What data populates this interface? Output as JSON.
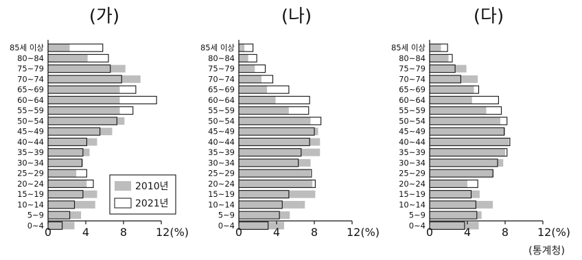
{
  "source": "(통계청)",
  "legend": {
    "entries": [
      {
        "label": "2010년",
        "color": "#bdbdbd"
      },
      {
        "label": "2021년",
        "color": "#ffffff"
      }
    ]
  },
  "chart_data": [
    {
      "type": "bar",
      "orientation": "horizontal",
      "title": "(가)",
      "xlim": [
        0,
        12
      ],
      "xticks": [
        "0",
        "4",
        "8",
        "12(%)"
      ],
      "categories": [
        "85세 이상",
        "80~84",
        "75~79",
        "70~74",
        "65~69",
        "60~64",
        "55~59",
        "50~54",
        "45~49",
        "40~44",
        "35~39",
        "30~34",
        "25~29",
        "20~24",
        "15~19",
        "10~14",
        "5~9",
        "0~4"
      ],
      "series": [
        {
          "name": "2010년",
          "values": [
            2.3,
            4.2,
            8.2,
            9.8,
            7.6,
            7.6,
            7.6,
            8.1,
            6.8,
            5.2,
            4.4,
            3.7,
            3.0,
            4.1,
            5.2,
            5.0,
            3.5,
            2.8
          ]
        },
        {
          "name": "2021년",
          "values": [
            5.8,
            6.4,
            6.6,
            7.8,
            9.3,
            11.5,
            9.0,
            7.3,
            5.5,
            4.1,
            3.7,
            3.6,
            4.1,
            4.8,
            3.7,
            2.8,
            2.3,
            1.5
          ]
        }
      ]
    },
    {
      "type": "bar",
      "orientation": "horizontal",
      "title": "(나)",
      "xlim": [
        0,
        12
      ],
      "xticks": [
        "0",
        "4",
        "8",
        "12(%)"
      ],
      "categories": [
        "85세 이상",
        "80~84",
        "75~79",
        "70~74",
        "65~69",
        "60~64",
        "55~59",
        "50~54",
        "45~49",
        "40~44",
        "35~39",
        "30~34",
        "25~29",
        "20~24",
        "15~19",
        "10~14",
        "5~9",
        "0~4"
      ],
      "series": [
        {
          "name": "2010년",
          "values": [
            0.6,
            1.0,
            1.7,
            2.4,
            3.0,
            3.9,
            5.3,
            7.6,
            8.4,
            8.6,
            8.6,
            7.6,
            7.6,
            7.8,
            8.1,
            7.0,
            5.4,
            4.8
          ]
        },
        {
          "name": "2021년",
          "values": [
            1.5,
            1.9,
            2.8,
            3.6,
            5.3,
            7.5,
            7.4,
            8.7,
            8.0,
            7.5,
            6.6,
            6.3,
            7.7,
            8.1,
            5.3,
            4.6,
            4.3,
            3.1
          ]
        }
      ]
    },
    {
      "type": "bar",
      "orientation": "horizontal",
      "title": "(다)",
      "xlim": [
        0,
        12
      ],
      "xticks": [
        "0",
        "4",
        "8",
        "12(%)"
      ],
      "categories": [
        "85세 이상",
        "80~84",
        "75~79",
        "70~74",
        "65~69",
        "60~64",
        "55~59",
        "50~54",
        "45~49",
        "40~44",
        "35~39",
        "30~34",
        "25~29",
        "20~24",
        "15~19",
        "10~14",
        "5~9",
        "0~4"
      ],
      "series": [
        {
          "name": "2010년",
          "values": [
            1.2,
            2.0,
            3.9,
            5.1,
            4.7,
            4.5,
            6.0,
            7.5,
            8.0,
            8.4,
            8.0,
            7.8,
            6.8,
            4.0,
            5.3,
            6.7,
            5.5,
            5.2
          ]
        },
        {
          "name": "2021년",
          "values": [
            1.9,
            2.4,
            2.7,
            3.3,
            5.2,
            7.3,
            7.6,
            8.2,
            7.9,
            8.5,
            8.2,
            7.2,
            6.7,
            5.1,
            4.4,
            4.9,
            5.0,
            3.7
          ]
        }
      ]
    }
  ]
}
